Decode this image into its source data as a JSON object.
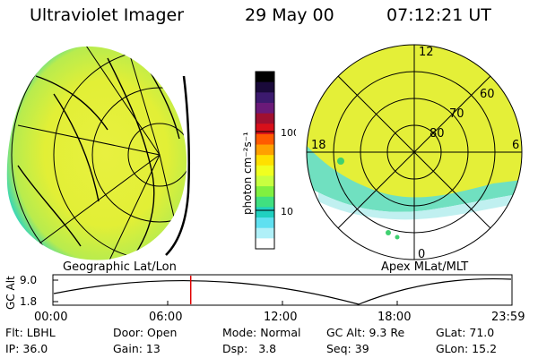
{
  "header": {
    "instrument": "Ultraviolet Imager",
    "date": "29 May 00",
    "time": "07:12:21 UT"
  },
  "left_panel": {
    "caption": "Geographic Lat/Lon"
  },
  "right_panel": {
    "caption": "Apex MLat/MLT",
    "ring_labels": [
      "80",
      "70",
      "60"
    ],
    "mlt_labels": {
      "top": "12",
      "left": "18",
      "right": "6",
      "bottom": "0"
    }
  },
  "colorbar": {
    "unit_label": "photon cm⁻²s⁻¹",
    "ticks": [
      "100",
      "10"
    ],
    "colors": [
      "#000000",
      "#1a0a3a",
      "#3c1a6e",
      "#6a1a78",
      "#a01030",
      "#d8101a",
      "#ff5a00",
      "#ffa000",
      "#ffe000",
      "#f0ff20",
      "#c8ff40",
      "#80f040",
      "#40e080",
      "#20d0c0",
      "#60e0f0",
      "#b0f0f8",
      "#ffffff"
    ]
  },
  "altitude_plot": {
    "ylabel": "GC Alt",
    "y_ticks": [
      "9.0",
      "1.8"
    ],
    "x_ticks": [
      "00:00",
      "06:00",
      "12:00",
      "18:00",
      "23:59"
    ],
    "marker_time": "07:12",
    "line_color": "#000000",
    "marker_color": "#e00000"
  },
  "footer": {
    "row1": {
      "flt": "Flt: LBHL",
      "door": "Door: Open",
      "mode": "Mode: Normal",
      "gcalt": "GC Alt: 9.3 Re",
      "glat": "GLat: 71.0"
    },
    "row2": {
      "ip": "IP: 36.0",
      "gain": "Gain: 13",
      "dsp": "Dsp:   3.8",
      "seq": "Seq: 39",
      "glon": "GLon: 15.2"
    }
  }
}
